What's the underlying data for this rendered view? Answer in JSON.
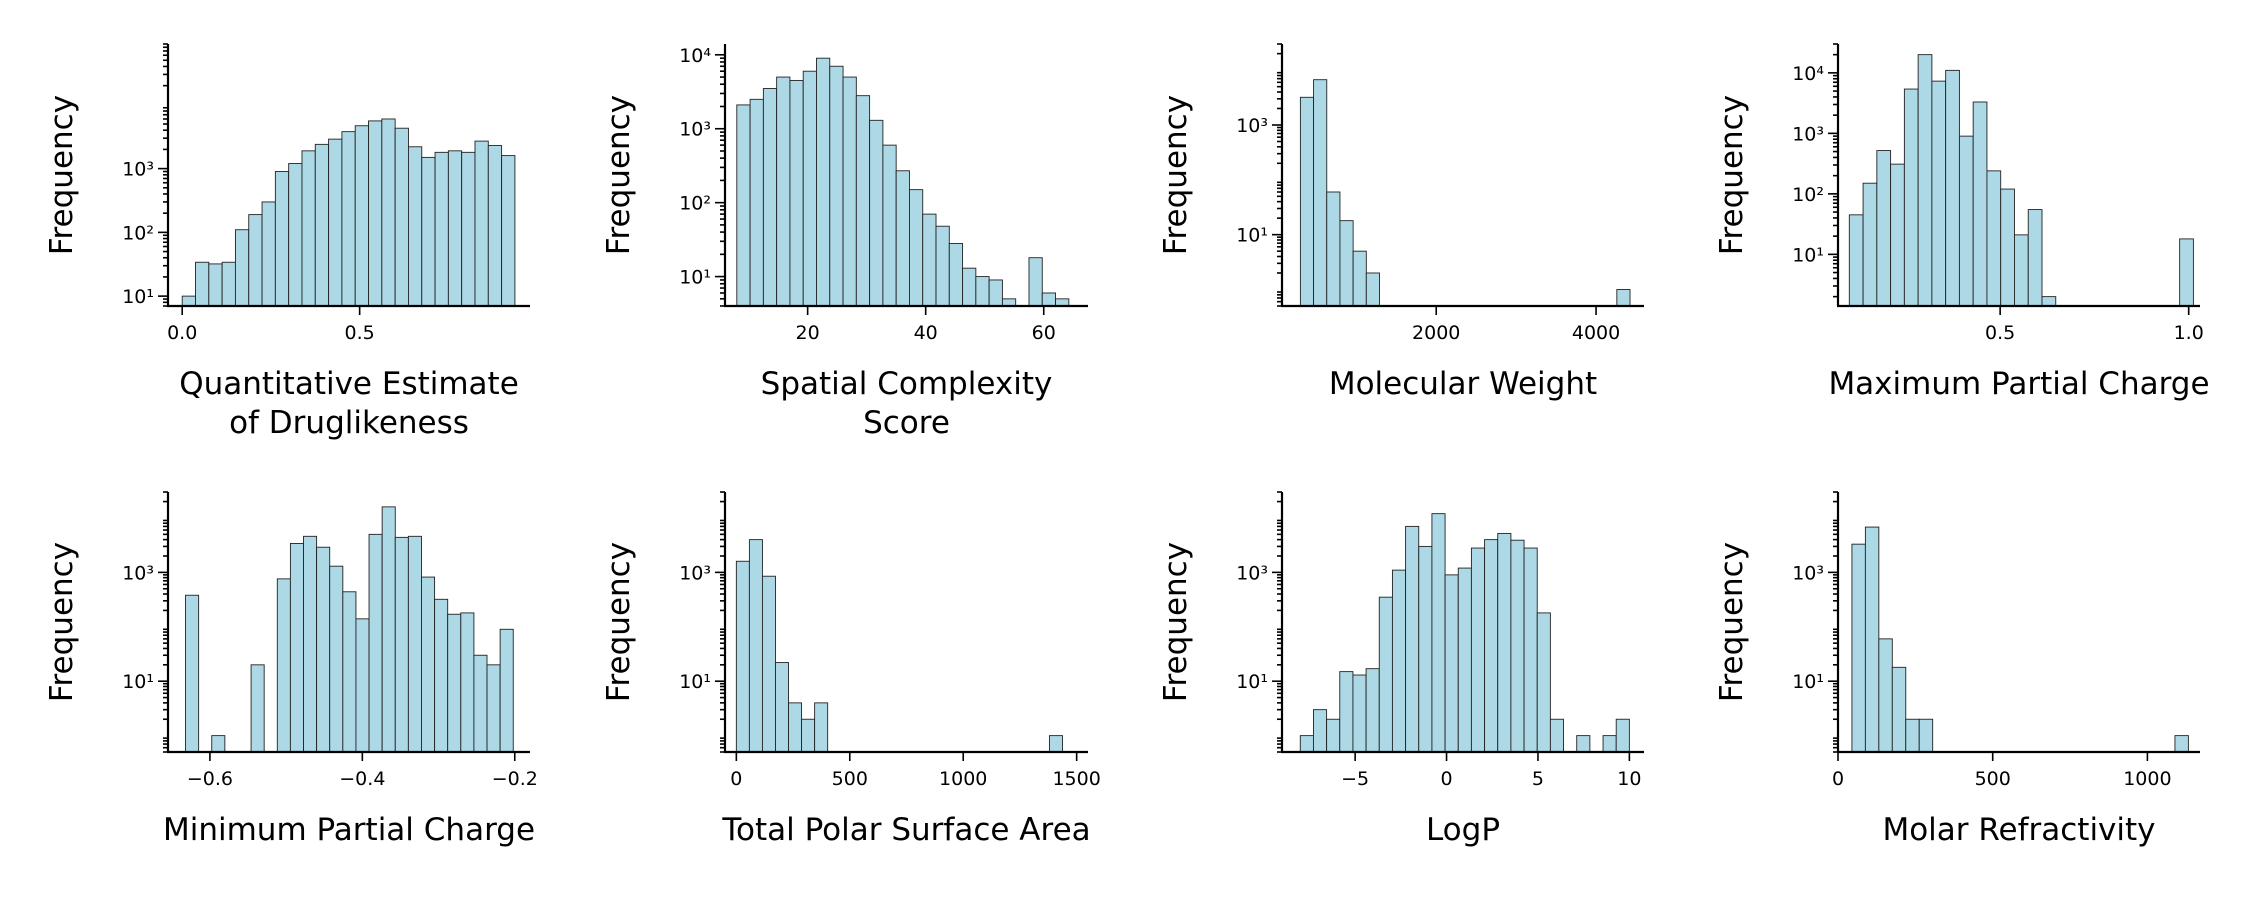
{
  "ylabel": "Frequency",
  "bar_color": "#add8e6",
  "edge_color": "#222222",
  "chart_data": [
    {
      "type": "bar",
      "xlabel": [
        "Quantitative Estimate",
        "of Druglikeness"
      ],
      "yscale": "log",
      "xlim": [
        -0.04,
        0.98
      ],
      "ylim": [
        7,
        90000
      ],
      "xticks": [
        0.0,
        0.5
      ],
      "xtick_labels": [
        "0.0",
        "0.5"
      ],
      "yticks": [
        10,
        100,
        1000
      ],
      "ytick_labels": [
        "10¹",
        "10²",
        "10³"
      ],
      "bin_edges": [
        0.0,
        0.0375,
        0.075,
        0.1125,
        0.15,
        0.1875,
        0.225,
        0.2625,
        0.3,
        0.3375,
        0.375,
        0.4125,
        0.45,
        0.4875,
        0.525,
        0.5625,
        0.6,
        0.6375,
        0.675,
        0.7125,
        0.75,
        0.7875,
        0.825,
        0.8625,
        0.9,
        0.9375
      ],
      "values": [
        10,
        34,
        32,
        34,
        110,
        190,
        300,
        900,
        1200,
        1900,
        2400,
        2900,
        3800,
        4700,
        5600,
        6000,
        4300,
        2200,
        1500,
        1800,
        1900,
        1800,
        2700,
        2300,
        1600
      ]
    },
    {
      "type": "bar",
      "xlabel": [
        "Spatial Complexity",
        "Score"
      ],
      "yscale": "log",
      "xlim": [
        6,
        67.5
      ],
      "ylim": [
        4,
        14000
      ],
      "xticks": [
        20,
        40,
        60
      ],
      "xtick_labels": [
        "20",
        "40",
        "60"
      ],
      "yticks": [
        10,
        100,
        1000,
        10000
      ],
      "ytick_labels": [
        "10¹",
        "10²",
        "10³",
        "10⁴"
      ],
      "bin_edges": [
        8,
        10.25,
        12.5,
        14.75,
        17,
        19.25,
        21.5,
        23.75,
        26,
        28.25,
        30.5,
        32.75,
        35,
        37.25,
        39.5,
        41.75,
        44,
        46.25,
        48.5,
        50.75,
        53,
        55.25,
        57.5,
        59.75,
        62,
        64.25
      ],
      "values": [
        2100,
        2500,
        3500,
        5000,
        4500,
        6000,
        9000,
        7000,
        5000,
        2800,
        1300,
        600,
        270,
        150,
        70,
        48,
        28,
        13,
        10,
        9,
        5,
        4,
        18,
        6,
        5
      ]
    },
    {
      "type": "bar",
      "xlabel": [
        "Molecular Weight"
      ],
      "yscale": "log",
      "xlim": [
        70,
        4600
      ],
      "ylim": [
        0.5,
        30000
      ],
      "xticks": [
        2000,
        4000
      ],
      "xtick_labels": [
        "2000",
        "4000"
      ],
      "yticks": [
        10,
        1000
      ],
      "ytick_labels": [
        "10¹",
        "10³"
      ],
      "bin_edges": [
        300,
        465,
        630,
        795,
        960,
        1125,
        1290,
        1455,
        1620,
        1785,
        1950,
        2115,
        2280,
        2445,
        2610,
        2775,
        2940,
        3105,
        3270,
        3435,
        3600,
        3765,
        3930,
        4095,
        4260,
        4425
      ],
      "values": [
        3200,
        6700,
        60,
        18,
        5,
        2,
        0,
        0,
        0,
        0,
        0,
        0,
        0,
        0,
        0,
        0,
        0,
        0,
        0,
        0,
        0,
        0,
        0,
        0,
        1
      ]
    },
    {
      "type": "bar",
      "xlabel": [
        "Maximum Partial Charge"
      ],
      "yscale": "log",
      "xlim": [
        0.07,
        1.03
      ],
      "ylim": [
        1.4,
        30000
      ],
      "xticks": [
        0.5,
        1.0
      ],
      "xtick_labels": [
        "0.5",
        "1.0"
      ],
      "yticks": [
        10,
        100,
        1000,
        10000
      ],
      "ytick_labels": [
        "10¹",
        "10²",
        "10³",
        "10⁴"
      ],
      "bin_edges": [
        0.1,
        0.1365,
        0.173,
        0.2095,
        0.246,
        0.2825,
        0.319,
        0.3555,
        0.392,
        0.4285,
        0.465,
        0.5015,
        0.538,
        0.5745,
        0.611,
        0.6475,
        0.684,
        0.7205,
        0.757,
        0.7935,
        0.83,
        0.8665,
        0.903,
        0.9395,
        0.976,
        1.0125
      ],
      "values": [
        45,
        150,
        520,
        310,
        5400,
        20000,
        7300,
        11000,
        900,
        3300,
        240,
        120,
        21,
        55,
        2,
        0,
        0,
        0,
        0,
        0,
        0,
        0,
        0,
        0,
        18
      ]
    },
    {
      "type": "bar",
      "xlabel": [
        "Minimum Partial Charge"
      ],
      "yscale": "log",
      "xlim": [
        -0.655,
        -0.18
      ],
      "ylim": [
        0.5,
        30000
      ],
      "xticks": [
        -0.6,
        -0.4,
        -0.2
      ],
      "xtick_labels": [
        "−0.6",
        "−0.4",
        "−0.2"
      ],
      "yticks": [
        10,
        1000
      ],
      "ytick_labels": [
        "10¹",
        "10³"
      ],
      "bin_edges": [
        -0.632,
        -0.6148,
        -0.5976,
        -0.5804,
        -0.5632,
        -0.546,
        -0.5288,
        -0.5116,
        -0.4944,
        -0.4772,
        -0.46,
        -0.4428,
        -0.4256,
        -0.4084,
        -0.3912,
        -0.374,
        -0.3568,
        -0.3396,
        -0.3224,
        -0.3052,
        -0.288,
        -0.2708,
        -0.2536,
        -0.2364,
        -0.2192,
        -0.202
      ],
      "values": [
        380,
        0,
        1,
        0,
        0,
        20,
        0,
        760,
        3400,
        4600,
        2900,
        1300,
        440,
        140,
        5000,
        16000,
        4400,
        4600,
        820,
        320,
        170,
        180,
        30,
        20,
        90,
        25
      ]
    },
    {
      "type": "bar",
      "xlabel": [
        "Total Polar Surface Area"
      ],
      "yscale": "log",
      "xlim": [
        -50,
        1550
      ],
      "ylim": [
        0.5,
        30000
      ],
      "xticks": [
        0,
        500,
        1000,
        1500
      ],
      "xtick_labels": [
        "0",
        "500",
        "1000",
        "1500"
      ],
      "yticks": [
        10,
        1000
      ],
      "ytick_labels": [
        "10¹",
        "10³"
      ],
      "bin_edges": [
        0,
        57.5,
        115,
        172.5,
        230,
        287.5,
        345,
        402.5,
        460,
        517.5,
        575,
        632.5,
        690,
        747.5,
        805,
        862.5,
        920,
        977.5,
        1035,
        1092.5,
        1150,
        1207.5,
        1265,
        1322.5,
        1380,
        1437.5
      ],
      "values": [
        1600,
        4000,
        850,
        22,
        4,
        2,
        4,
        0,
        0,
        0,
        0,
        0,
        0,
        0,
        0,
        0,
        0,
        0,
        0,
        0,
        0,
        0,
        0,
        0,
        1
      ]
    },
    {
      "type": "bar",
      "xlabel": [
        "LogP"
      ],
      "yscale": "log",
      "xlim": [
        -9,
        10.8
      ],
      "ylim": [
        0.5,
        30000
      ],
      "xticks": [
        -5,
        0,
        5,
        10
      ],
      "xtick_labels": [
        "−5",
        "0",
        "5",
        "10"
      ],
      "yticks": [
        10,
        1000
      ],
      "ytick_labels": [
        "10¹",
        "10³"
      ],
      "bin_edges": [
        -8,
        -7.28,
        -6.56,
        -5.84,
        -5.12,
        -4.4,
        -3.68,
        -2.96,
        -2.24,
        -1.52,
        -0.8,
        -0.08,
        0.64,
        1.36,
        2.08,
        2.8,
        3.52,
        4.24,
        4.96,
        5.68,
        6.4,
        7.12,
        7.84,
        8.56,
        9.28,
        10.0
      ],
      "values": [
        1,
        3,
        2,
        15,
        13,
        17,
        350,
        1100,
        7000,
        3000,
        12000,
        900,
        1200,
        2800,
        4000,
        5200,
        3900,
        2800,
        180,
        2,
        0,
        1,
        0,
        1,
        2
      ]
    },
    {
      "type": "bar",
      "xlabel": [
        "Molar Refractivity"
      ],
      "yscale": "log",
      "xlim": [
        0,
        1170
      ],
      "ylim": [
        0.5,
        30000
      ],
      "xticks": [
        0,
        500,
        1000
      ],
      "xtick_labels": [
        "0",
        "500",
        "1000"
      ],
      "yticks": [
        10,
        1000
      ],
      "ytick_labels": [
        "10¹",
        "10³"
      ],
      "bin_edges": [
        45,
        88.5,
        132,
        175.5,
        219,
        262.5,
        306,
        349.5,
        393,
        436.5,
        480,
        523.5,
        567,
        610.5,
        654,
        697.5,
        741,
        784.5,
        828,
        871.5,
        915,
        958.5,
        1002,
        1045.5,
        1089,
        1132.5
      ],
      "values": [
        3300,
        6800,
        60,
        18,
        2,
        2,
        0,
        0,
        0,
        0,
        0,
        0,
        0,
        0,
        0,
        0,
        0,
        0,
        0,
        0,
        0,
        0,
        0,
        0,
        1
      ]
    }
  ]
}
